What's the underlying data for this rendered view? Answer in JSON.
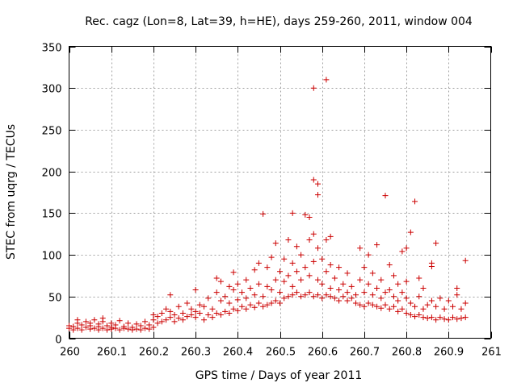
{
  "chart_data": {
    "type": "scatter",
    "title": "Rec. cagz (Lon=8, Lat=39, h=HE), days 259-260, 2011, window 004",
    "xlabel": "GPS time / Days of year 2011",
    "ylabel": "STEC from uqrg / TECUs",
    "xlim": [
      260,
      261
    ],
    "ylim": [
      0,
      350
    ],
    "xticks": [
      260,
      260.1,
      260.2,
      260.3,
      260.4,
      260.5,
      260.6,
      260.7,
      260.8,
      260.9,
      261
    ],
    "xtick_labels": [
      "260",
      "260.1",
      "260.2",
      "260.3",
      "260.4",
      "260.5",
      "260.6",
      "260.7",
      "260.8",
      "260.9",
      "261"
    ],
    "yticks": [
      0,
      50,
      100,
      150,
      200,
      250,
      300,
      350
    ],
    "ytick_labels": [
      "0",
      "50",
      "100",
      "150",
      "200",
      "250",
      "300",
      "350"
    ],
    "grid": true,
    "marker": "+",
    "color": "#cc0000",
    "series": [
      {
        "name": "STEC",
        "points": [
          [
            260.0,
            12
          ],
          [
            260.0,
            15
          ],
          [
            260.01,
            10
          ],
          [
            260.01,
            14
          ],
          [
            260.02,
            12
          ],
          [
            260.02,
            18
          ],
          [
            260.02,
            22
          ],
          [
            260.03,
            10
          ],
          [
            260.03,
            16
          ],
          [
            260.04,
            13
          ],
          [
            260.04,
            20
          ],
          [
            260.05,
            11
          ],
          [
            260.05,
            15
          ],
          [
            260.05,
            18
          ],
          [
            260.06,
            12
          ],
          [
            260.06,
            22
          ],
          [
            260.07,
            10
          ],
          [
            260.07,
            14
          ],
          [
            260.07,
            17
          ],
          [
            260.08,
            12
          ],
          [
            260.08,
            20
          ],
          [
            260.08,
            24
          ],
          [
            260.09,
            10
          ],
          [
            260.09,
            15
          ],
          [
            260.1,
            11
          ],
          [
            260.1,
            13
          ],
          [
            260.1,
            18
          ],
          [
            260.11,
            12
          ],
          [
            260.11,
            16
          ],
          [
            260.12,
            10
          ],
          [
            260.12,
            21
          ],
          [
            260.13,
            12
          ],
          [
            260.13,
            14
          ],
          [
            260.14,
            11
          ],
          [
            260.14,
            18
          ],
          [
            260.15,
            10
          ],
          [
            260.15,
            13
          ],
          [
            260.16,
            11
          ],
          [
            260.16,
            17
          ],
          [
            260.17,
            10
          ],
          [
            260.17,
            15
          ],
          [
            260.18,
            12
          ],
          [
            260.18,
            20
          ],
          [
            260.19,
            11
          ],
          [
            260.19,
            16
          ],
          [
            260.2,
            13
          ],
          [
            260.2,
            22
          ],
          [
            260.2,
            28
          ],
          [
            260.21,
            18
          ],
          [
            260.21,
            26
          ],
          [
            260.22,
            20
          ],
          [
            260.22,
            30
          ],
          [
            260.23,
            22
          ],
          [
            260.23,
            35
          ],
          [
            260.24,
            25
          ],
          [
            260.24,
            32
          ],
          [
            260.24,
            52
          ],
          [
            260.25,
            20
          ],
          [
            260.25,
            28
          ],
          [
            260.26,
            24
          ],
          [
            260.26,
            38
          ],
          [
            260.27,
            22
          ],
          [
            260.27,
            30
          ],
          [
            260.28,
            26
          ],
          [
            260.28,
            42
          ],
          [
            260.29,
            28
          ],
          [
            260.29,
            35
          ],
          [
            260.3,
            25
          ],
          [
            260.3,
            32
          ],
          [
            260.3,
            58
          ],
          [
            260.31,
            30
          ],
          [
            260.31,
            40
          ],
          [
            260.32,
            22
          ],
          [
            260.32,
            38
          ],
          [
            260.33,
            28
          ],
          [
            260.33,
            48
          ],
          [
            260.34,
            25
          ],
          [
            260.34,
            35
          ],
          [
            260.35,
            30
          ],
          [
            260.35,
            55
          ],
          [
            260.35,
            72
          ],
          [
            260.36,
            28
          ],
          [
            260.36,
            45
          ],
          [
            260.36,
            68
          ],
          [
            260.37,
            32
          ],
          [
            260.37,
            50
          ],
          [
            260.38,
            30
          ],
          [
            260.38,
            42
          ],
          [
            260.38,
            62
          ],
          [
            260.39,
            35
          ],
          [
            260.39,
            58
          ],
          [
            260.39,
            79
          ],
          [
            260.4,
            33
          ],
          [
            260.4,
            46
          ],
          [
            260.4,
            65
          ],
          [
            260.41,
            38
          ],
          [
            260.41,
            55
          ],
          [
            260.42,
            35
          ],
          [
            260.42,
            48
          ],
          [
            260.42,
            70
          ],
          [
            260.43,
            40
          ],
          [
            260.43,
            60
          ],
          [
            260.44,
            37
          ],
          [
            260.44,
            52
          ],
          [
            260.44,
            82
          ],
          [
            260.45,
            42
          ],
          [
            260.45,
            65
          ],
          [
            260.45,
            90
          ],
          [
            260.46,
            38
          ],
          [
            260.46,
            50
          ],
          [
            260.46,
            149
          ],
          [
            260.47,
            40
          ],
          [
            260.47,
            62
          ],
          [
            260.47,
            85
          ],
          [
            260.48,
            42
          ],
          [
            260.48,
            58
          ],
          [
            260.48,
            97
          ],
          [
            260.49,
            45
          ],
          [
            260.49,
            70
          ],
          [
            260.49,
            114
          ],
          [
            260.5,
            42
          ],
          [
            260.5,
            55
          ],
          [
            260.5,
            80
          ],
          [
            260.51,
            48
          ],
          [
            260.51,
            68
          ],
          [
            260.51,
            95
          ],
          [
            260.52,
            50
          ],
          [
            260.52,
            75
          ],
          [
            260.52,
            118
          ],
          [
            260.53,
            52
          ],
          [
            260.53,
            62
          ],
          [
            260.53,
            90
          ],
          [
            260.53,
            150
          ],
          [
            260.54,
            55
          ],
          [
            260.54,
            80
          ],
          [
            260.54,
            110
          ],
          [
            260.55,
            50
          ],
          [
            260.55,
            70
          ],
          [
            260.55,
            100
          ],
          [
            260.56,
            52
          ],
          [
            260.56,
            85
          ],
          [
            260.56,
            148
          ],
          [
            260.57,
            55
          ],
          [
            260.57,
            75
          ],
          [
            260.57,
            118
          ],
          [
            260.57,
            145
          ],
          [
            260.58,
            50
          ],
          [
            260.58,
            92
          ],
          [
            260.58,
            125
          ],
          [
            260.58,
            190
          ],
          [
            260.58,
            300
          ],
          [
            260.59,
            52
          ],
          [
            260.59,
            70
          ],
          [
            260.59,
            108
          ],
          [
            260.59,
            172
          ],
          [
            260.59,
            185
          ],
          [
            260.6,
            48
          ],
          [
            260.6,
            65
          ],
          [
            260.6,
            95
          ],
          [
            260.61,
            52
          ],
          [
            260.61,
            80
          ],
          [
            260.61,
            118
          ],
          [
            260.61,
            310
          ],
          [
            260.62,
            50
          ],
          [
            260.62,
            60
          ],
          [
            260.62,
            88
          ],
          [
            260.62,
            122
          ],
          [
            260.63,
            48
          ],
          [
            260.63,
            72
          ],
          [
            260.64,
            45
          ],
          [
            260.64,
            58
          ],
          [
            260.64,
            85
          ],
          [
            260.65,
            50
          ],
          [
            260.65,
            65
          ],
          [
            260.66,
            45
          ],
          [
            260.66,
            55
          ],
          [
            260.66,
            78
          ],
          [
            260.67,
            48
          ],
          [
            260.67,
            62
          ],
          [
            260.68,
            42
          ],
          [
            260.68,
            52
          ],
          [
            260.69,
            40
          ],
          [
            260.69,
            70
          ],
          [
            260.69,
            108
          ],
          [
            260.7,
            38
          ],
          [
            260.7,
            55
          ],
          [
            260.7,
            85
          ],
          [
            260.71,
            42
          ],
          [
            260.71,
            65
          ],
          [
            260.71,
            100
          ],
          [
            260.72,
            40
          ],
          [
            260.72,
            52
          ],
          [
            260.72,
            78
          ],
          [
            260.73,
            38
          ],
          [
            260.73,
            60
          ],
          [
            260.73,
            112
          ],
          [
            260.74,
            36
          ],
          [
            260.74,
            48
          ],
          [
            260.74,
            70
          ],
          [
            260.75,
            40
          ],
          [
            260.75,
            55
          ],
          [
            260.75,
            171
          ],
          [
            260.76,
            35
          ],
          [
            260.76,
            58
          ],
          [
            260.76,
            88
          ],
          [
            260.77,
            38
          ],
          [
            260.77,
            50
          ],
          [
            260.77,
            75
          ],
          [
            260.78,
            32
          ],
          [
            260.78,
            45
          ],
          [
            260.78,
            65
          ],
          [
            260.79,
            35
          ],
          [
            260.79,
            55
          ],
          [
            260.79,
            104
          ],
          [
            260.8,
            30
          ],
          [
            260.8,
            48
          ],
          [
            260.8,
            68
          ],
          [
            260.8,
            108
          ],
          [
            260.81,
            28
          ],
          [
            260.81,
            42
          ],
          [
            260.81,
            127
          ],
          [
            260.82,
            26
          ],
          [
            260.82,
            38
          ],
          [
            260.82,
            164
          ],
          [
            260.83,
            28
          ],
          [
            260.83,
            50
          ],
          [
            260.83,
            72
          ],
          [
            260.84,
            25
          ],
          [
            260.84,
            35
          ],
          [
            260.84,
            60
          ],
          [
            260.85,
            24
          ],
          [
            260.85,
            40
          ],
          [
            260.86,
            25
          ],
          [
            260.86,
            45
          ],
          [
            260.86,
            86
          ],
          [
            260.86,
            90
          ],
          [
            260.87,
            22
          ],
          [
            260.87,
            38
          ],
          [
            260.87,
            114
          ],
          [
            260.88,
            25
          ],
          [
            260.88,
            48
          ],
          [
            260.89,
            23
          ],
          [
            260.89,
            35
          ],
          [
            260.9,
            22
          ],
          [
            260.9,
            45
          ],
          [
            260.91,
            25
          ],
          [
            260.91,
            38
          ],
          [
            260.92,
            23
          ],
          [
            260.92,
            52
          ],
          [
            260.92,
            60
          ],
          [
            260.93,
            24
          ],
          [
            260.93,
            35
          ],
          [
            260.94,
            25
          ],
          [
            260.94,
            42
          ],
          [
            260.94,
            93
          ]
        ]
      }
    ]
  }
}
